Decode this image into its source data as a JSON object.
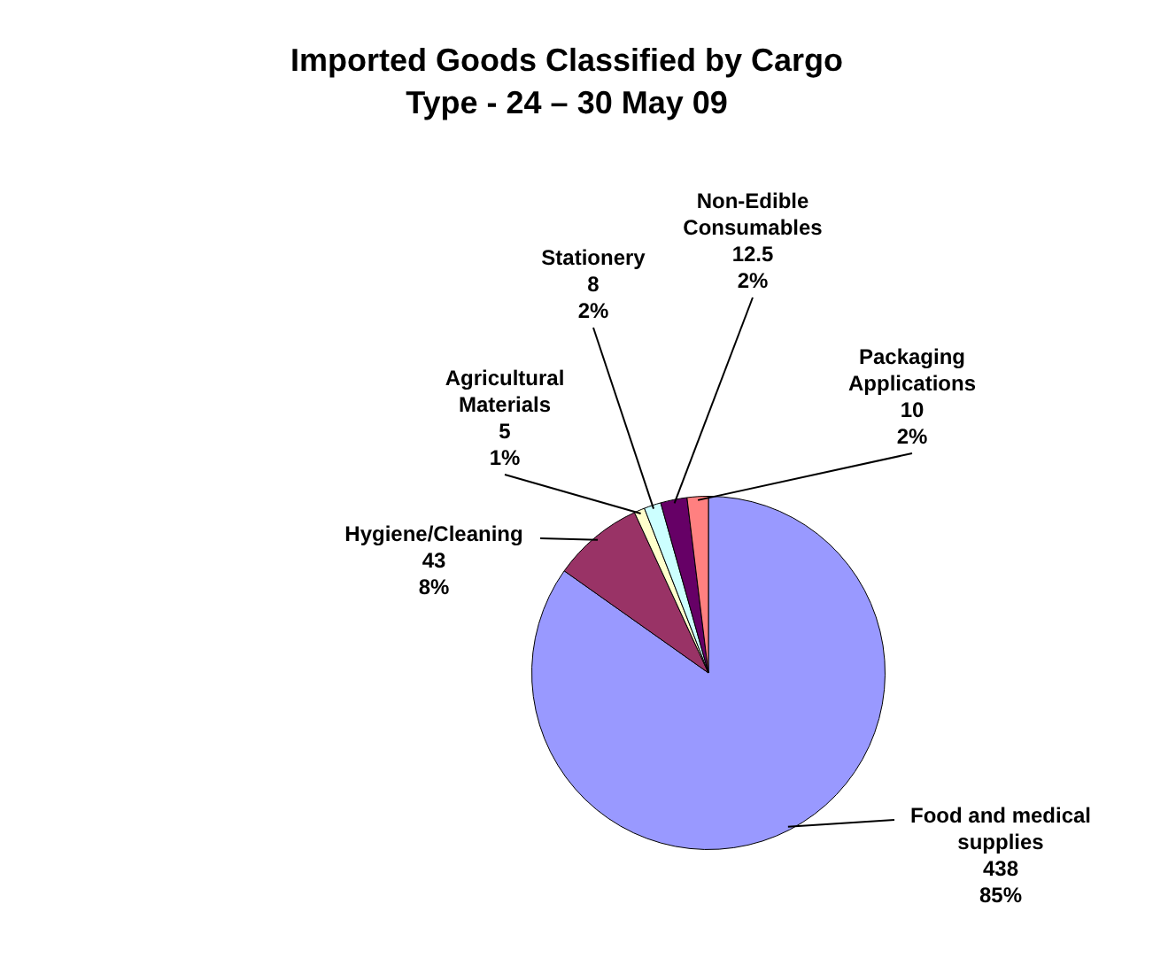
{
  "chart_data": {
    "type": "pie",
    "title": "Imported Goods Classified by Cargo Type - 24 – 30 May 09",
    "categories": [
      "Food and medical supplies",
      "Hygiene/Cleaning",
      "Agricultural Materials",
      "Stationery",
      "Non-Edible Consumables",
      "Packaging Applications"
    ],
    "values": [
      438,
      43,
      5,
      8,
      12.5,
      10
    ],
    "value_labels": [
      "438\n85%",
      "43\n8%",
      "5\n1%",
      "8\n2%",
      "12.5\n2%",
      "10\n2%"
    ],
    "colors": [
      "#9999ff",
      "#993366",
      "#ffffcc",
      "#ccffff",
      "#660066",
      "#ff8080"
    ],
    "legend": false
  }
}
